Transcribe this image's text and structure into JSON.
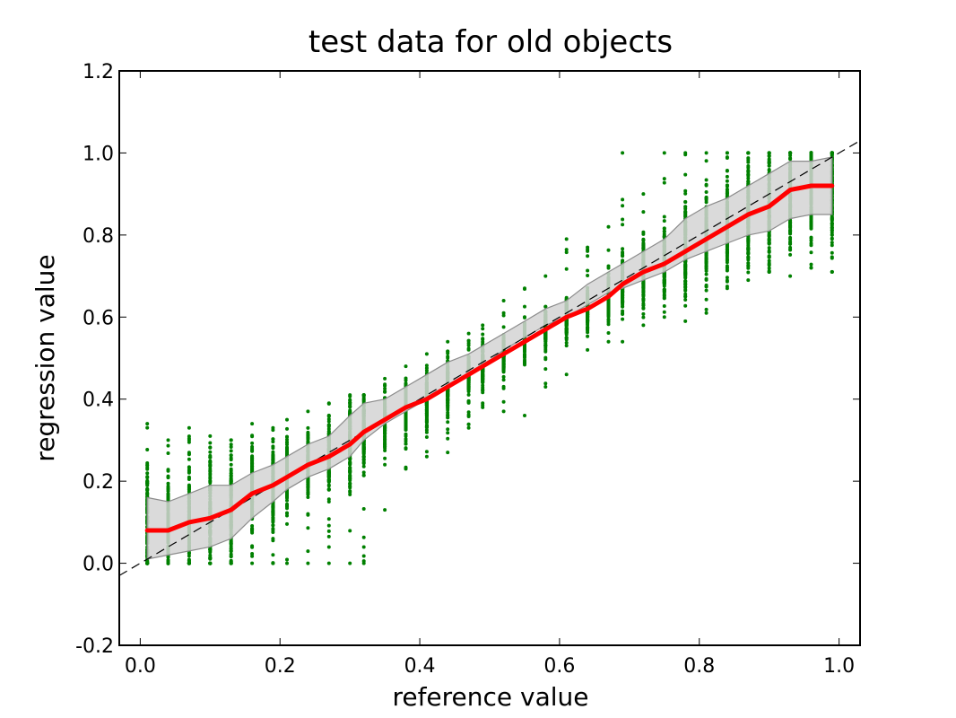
{
  "chart_data": {
    "type": "scatter",
    "title": "test data for old objects",
    "xlabel": "reference value",
    "ylabel": "regression value",
    "xlim": [
      -0.03,
      1.03
    ],
    "ylim": [
      -0.2,
      1.2
    ],
    "x_ticks": [
      "0.0",
      "0.2",
      "0.4",
      "0.6",
      "0.8",
      "1.0"
    ],
    "y_ticks": [
      "-0.2",
      "0.0",
      "0.2",
      "0.4",
      "0.6",
      "0.8",
      "1.0",
      "1.2"
    ],
    "grid": false,
    "legend": "none",
    "colors": {
      "scatter": "#008000",
      "mean_line": "#ff0000",
      "band_fill": "#d3d3d3",
      "band_edge": "#8c8c8c",
      "reference_line": "#000000"
    },
    "reference_line": {
      "x": [
        -0.03,
        1.03
      ],
      "y": [
        -0.03,
        1.03
      ],
      "style": "dashed"
    },
    "series": [
      {
        "type": "scatter",
        "x": [
          0.01,
          0.04,
          0.07,
          0.1,
          0.13,
          0.16,
          0.19,
          0.21,
          0.24,
          0.27,
          0.3,
          0.32,
          0.35,
          0.38,
          0.41,
          0.44,
          0.47,
          0.49,
          0.52,
          0.55,
          0.58,
          0.61,
          0.64,
          0.67,
          0.69,
          0.72,
          0.75,
          0.78,
          0.81,
          0.84,
          0.87,
          0.9,
          0.93,
          0.96,
          0.99
        ],
        "y_min": [
          0.0,
          0.0,
          0.0,
          0.0,
          0.0,
          0.0,
          0.0,
          0.0,
          0.0,
          0.0,
          0.0,
          0.0,
          0.13,
          0.23,
          0.26,
          0.27,
          0.33,
          0.38,
          0.37,
          0.36,
          0.43,
          0.46,
          0.52,
          0.54,
          0.54,
          0.58,
          0.6,
          0.59,
          0.61,
          0.67,
          0.69,
          0.71,
          0.7,
          0.72,
          0.71
        ],
        "y_max": [
          0.34,
          0.3,
          0.33,
          0.31,
          0.3,
          0.34,
          0.33,
          0.35,
          0.37,
          0.39,
          0.41,
          0.41,
          0.45,
          0.48,
          0.51,
          0.54,
          0.56,
          0.58,
          0.64,
          0.67,
          0.7,
          0.79,
          0.77,
          0.82,
          1.0,
          0.9,
          1.0,
          1.0,
          1.0,
          1.0,
          1.0,
          1.0,
          1.0,
          1.0,
          1.0
        ]
      },
      {
        "type": "band",
        "x": [
          0.01,
          0.04,
          0.07,
          0.1,
          0.13,
          0.16,
          0.19,
          0.21,
          0.24,
          0.27,
          0.3,
          0.32,
          0.35,
          0.38,
          0.41,
          0.44,
          0.47,
          0.49,
          0.52,
          0.55,
          0.58,
          0.61,
          0.64,
          0.67,
          0.69,
          0.72,
          0.75,
          0.78,
          0.81,
          0.84,
          0.87,
          0.9,
          0.93,
          0.96,
          0.99
        ],
        "lower": [
          0.01,
          0.02,
          0.03,
          0.04,
          0.06,
          0.11,
          0.15,
          0.18,
          0.21,
          0.23,
          0.26,
          0.3,
          0.34,
          0.37,
          0.4,
          0.43,
          0.46,
          0.48,
          0.52,
          0.55,
          0.58,
          0.6,
          0.63,
          0.66,
          0.67,
          0.69,
          0.71,
          0.74,
          0.76,
          0.78,
          0.8,
          0.81,
          0.84,
          0.85,
          0.85
        ],
        "upper": [
          0.16,
          0.15,
          0.17,
          0.19,
          0.19,
          0.22,
          0.24,
          0.26,
          0.29,
          0.31,
          0.36,
          0.39,
          0.4,
          0.43,
          0.46,
          0.49,
          0.51,
          0.53,
          0.56,
          0.59,
          0.62,
          0.64,
          0.68,
          0.71,
          0.73,
          0.76,
          0.79,
          0.84,
          0.87,
          0.89,
          0.92,
          0.95,
          0.98,
          0.98,
          0.99
        ]
      },
      {
        "type": "line",
        "x": [
          0.01,
          0.04,
          0.07,
          0.1,
          0.13,
          0.16,
          0.19,
          0.21,
          0.24,
          0.27,
          0.3,
          0.32,
          0.35,
          0.38,
          0.41,
          0.44,
          0.47,
          0.49,
          0.52,
          0.55,
          0.58,
          0.61,
          0.64,
          0.67,
          0.69,
          0.72,
          0.75,
          0.78,
          0.81,
          0.84,
          0.87,
          0.9,
          0.93,
          0.96,
          0.99
        ],
        "y": [
          0.08,
          0.08,
          0.1,
          0.11,
          0.13,
          0.17,
          0.19,
          0.21,
          0.24,
          0.26,
          0.29,
          0.32,
          0.35,
          0.38,
          0.4,
          0.43,
          0.46,
          0.48,
          0.51,
          0.54,
          0.57,
          0.6,
          0.62,
          0.65,
          0.68,
          0.71,
          0.73,
          0.76,
          0.79,
          0.82,
          0.85,
          0.87,
          0.91,
          0.92,
          0.92
        ]
      }
    ]
  }
}
